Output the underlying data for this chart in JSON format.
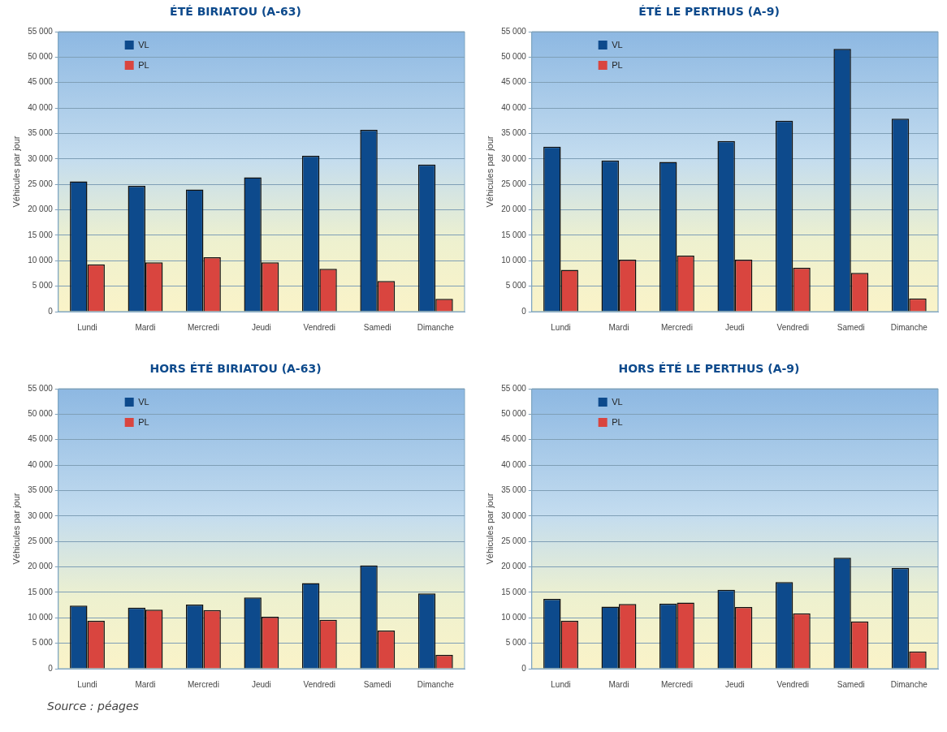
{
  "chart_data": [
    {
      "type": "bar",
      "title": "ÉTÉ BIRIATOU (A-63)",
      "ylabel": "Véhicules par jour",
      "categories": [
        "Lundi",
        "Mardi",
        "Mercredi",
        "Jeudi",
        "Vendredi",
        "Samedi",
        "Dimanche"
      ],
      "series": [
        {
          "name": "VL",
          "color": "#0d4a8c",
          "values": [
            25600,
            24700,
            24000,
            26400,
            30600,
            35700,
            28900
          ]
        },
        {
          "name": "PL",
          "color": "#d9453f",
          "values": [
            9300,
            9700,
            10700,
            9700,
            8400,
            6000,
            2500
          ]
        }
      ],
      "ylim": [
        0,
        55000
      ],
      "yticks": [
        {
          "value": 0,
          "label": "0"
        },
        {
          "value": 5000,
          "label": "5 000"
        },
        {
          "value": 10000,
          "label": "10 000"
        },
        {
          "value": 15000,
          "label": "15 000"
        },
        {
          "value": 20000,
          "label": "20 000"
        },
        {
          "value": 25000,
          "label": "25 000"
        },
        {
          "value": 30000,
          "label": "30 000"
        },
        {
          "value": 35000,
          "label": "35 000"
        },
        {
          "value": 40000,
          "label": "40 000"
        },
        {
          "value": 45000,
          "label": "45 000"
        },
        {
          "value": 50000,
          "label": "50 000"
        },
        {
          "value": 55000,
          "label": "55 000"
        }
      ],
      "grid": "y",
      "legend": "top left"
    },
    {
      "type": "bar",
      "title": "ÉTÉ LE PERTHUS (A-9)",
      "ylabel": "Véhicules par jour",
      "categories": [
        "Lundi",
        "Mardi",
        "Mercredi",
        "Jeudi",
        "Vendredi",
        "Samedi",
        "Dimanche"
      ],
      "series": [
        {
          "name": "VL",
          "color": "#0d4a8c",
          "values": [
            32400,
            29700,
            29400,
            33500,
            37500,
            51600,
            37900
          ]
        },
        {
          "name": "PL",
          "color": "#d9453f",
          "values": [
            8200,
            10200,
            11000,
            10200,
            8600,
            7600,
            2600
          ]
        }
      ],
      "ylim": [
        0,
        55000
      ],
      "yticks": [
        {
          "value": 0,
          "label": "0"
        },
        {
          "value": 5000,
          "label": "5 000"
        },
        {
          "value": 10000,
          "label": "10 000"
        },
        {
          "value": 15000,
          "label": "15 000"
        },
        {
          "value": 20000,
          "label": "20 000"
        },
        {
          "value": 25000,
          "label": "25 000"
        },
        {
          "value": 30000,
          "label": "30 000"
        },
        {
          "value": 35000,
          "label": "35 000"
        },
        {
          "value": 40000,
          "label": "40 000"
        },
        {
          "value": 45000,
          "label": "45 000"
        },
        {
          "value": 50000,
          "label": "50 000"
        },
        {
          "value": 55000,
          "label": "55 000"
        }
      ],
      "grid": "y",
      "legend": "top left"
    },
    {
      "type": "bar",
      "title": "HORS ÉTÉ BIRIATOU (A-63)",
      "ylabel": "Véhicules par jour",
      "categories": [
        "Lundi",
        "Mardi",
        "Mercredi",
        "Jeudi",
        "Vendredi",
        "Samedi",
        "Dimanche"
      ],
      "series": [
        {
          "name": "VL",
          "color": "#0d4a8c",
          "values": [
            12400,
            12000,
            12600,
            14000,
            16800,
            20300,
            14800
          ]
        },
        {
          "name": "PL",
          "color": "#d9453f",
          "values": [
            9400,
            11600,
            11500,
            10200,
            9600,
            7500,
            2700
          ]
        }
      ],
      "ylim": [
        0,
        55000
      ],
      "yticks": [
        {
          "value": 0,
          "label": "0"
        },
        {
          "value": 5000,
          "label": "5 000"
        },
        {
          "value": 10000,
          "label": "10 000"
        },
        {
          "value": 15000,
          "label": "15 000"
        },
        {
          "value": 20000,
          "label": "20 000"
        },
        {
          "value": 25000,
          "label": "25 000"
        },
        {
          "value": 30000,
          "label": "30 000"
        },
        {
          "value": 35000,
          "label": "35 000"
        },
        {
          "value": 40000,
          "label": "40 000"
        },
        {
          "value": 45000,
          "label": "45 000"
        },
        {
          "value": 50000,
          "label": "50 000"
        },
        {
          "value": 55000,
          "label": "55 000"
        }
      ],
      "grid": "y",
      "legend": "top left",
      "annotations": [
        "Source : péages"
      ]
    },
    {
      "type": "bar",
      "title": "HORS ÉTÉ LE PERTHUS (A-9)",
      "ylabel": "Véhicules par jour",
      "categories": [
        "Lundi",
        "Mardi",
        "Mercredi",
        "Jeudi",
        "Vendredi",
        "Samedi",
        "Dimanche"
      ],
      "series": [
        {
          "name": "VL",
          "color": "#0d4a8c",
          "values": [
            13700,
            12200,
            12800,
            15500,
            17000,
            21800,
            19800
          ]
        },
        {
          "name": "PL",
          "color": "#d9453f",
          "values": [
            9400,
            12700,
            13000,
            12100,
            10900,
            9300,
            3400
          ]
        }
      ],
      "ylim": [
        0,
        55000
      ],
      "yticks": [
        {
          "value": 0,
          "label": "0"
        },
        {
          "value": 5000,
          "label": "5 000"
        },
        {
          "value": 10000,
          "label": "10 000"
        },
        {
          "value": 15000,
          "label": "15 000"
        },
        {
          "value": 20000,
          "label": "20 000"
        },
        {
          "value": 25000,
          "label": "25 000"
        },
        {
          "value": 30000,
          "label": "30 000"
        },
        {
          "value": 35000,
          "label": "35 000"
        },
        {
          "value": 40000,
          "label": "40 000"
        },
        {
          "value": 45000,
          "label": "45 000"
        },
        {
          "value": 50000,
          "label": "50 000"
        },
        {
          "value": 55000,
          "label": "55 000"
        }
      ],
      "grid": "y",
      "legend": "top left"
    }
  ]
}
